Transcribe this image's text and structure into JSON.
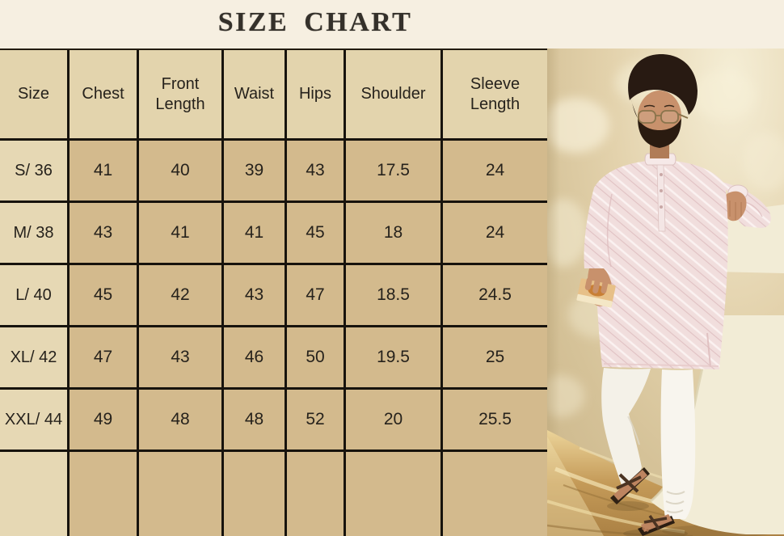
{
  "title": "SIZE CHART",
  "chart_data": {
    "type": "table",
    "title": "SIZE CHART",
    "columns": [
      "Size",
      "Chest",
      "Front Length",
      "Waist",
      "Hips",
      "Shoulder",
      "Sleeve Length"
    ],
    "rows": [
      [
        "S/ 36",
        "41",
        "40",
        "39",
        "43",
        "17.5",
        "24"
      ],
      [
        "M/ 38",
        "43",
        "41",
        "41",
        "45",
        "18",
        "24"
      ],
      [
        "L/ 40",
        "45",
        "42",
        "43",
        "47",
        "18.5",
        "24.5"
      ],
      [
        "XL/ 42",
        "47",
        "43",
        "46",
        "50",
        "19.5",
        "25"
      ],
      [
        "XXL/ 44",
        "49",
        "48",
        "48",
        "52",
        "20",
        "25.5"
      ]
    ],
    "layout": "header row and first column on light tan, values on darker tan, black grid lines"
  },
  "photo": {
    "name": "model-photo",
    "description": "Man with dark hair, glasses and beard wearing a light pink printed kurta with white churidar pants and brown strappy sandals, standing against a beige floral wall with a golden satin floor and a white curved prop, holding a small orange book"
  },
  "colors": {
    "page_bg": "#f6efe1",
    "header_cell_bg": "#e3d4ad",
    "size_col_bg": "#e6d8b4",
    "data_cell_bg": "#d3ba8d",
    "grid_border": "#17130d",
    "title_text": "#34302a",
    "cell_text": "#26221c",
    "kurta_pink": "#f1dedd",
    "wall_beige": "#dcc9a0",
    "gold_floor": "#c49a58",
    "prop_ivory": "#f2ecd6"
  }
}
